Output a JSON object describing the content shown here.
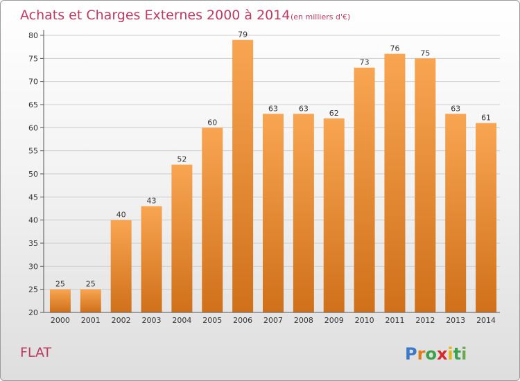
{
  "header": {
    "title": "Achats et Charges Externes 2000 à 2014",
    "unit": "(en milliers d'€)"
  },
  "commune": "FLAT",
  "brand": {
    "letters": [
      "P",
      "r",
      "o",
      "x",
      "i",
      "t",
      "i"
    ],
    "colors": [
      "#3a78c9",
      "#e07b1a",
      "#3aa04a",
      "#d8292c",
      "#e0b81a",
      "#3aa04a",
      "#6aa84f"
    ]
  },
  "colors": {
    "bar_top": "#f8a552",
    "bar_bottom": "#d0701a",
    "title": "#c0395f",
    "grid": "#cccccc"
  },
  "chart_data": {
    "type": "bar",
    "title": "Achats et Charges Externes 2000 à 2014",
    "subtitle": "(en milliers d'€)",
    "categories": [
      "2000",
      "2001",
      "2002",
      "2003",
      "2004",
      "2005",
      "2006",
      "2007",
      "2008",
      "2009",
      "2010",
      "2011",
      "2012",
      "2013",
      "2014"
    ],
    "values": [
      25,
      25,
      40,
      43,
      52,
      60,
      79,
      63,
      63,
      62,
      73,
      76,
      75,
      63,
      61
    ],
    "ylim": [
      20,
      80
    ],
    "yticks": [
      20,
      25,
      30,
      35,
      40,
      45,
      50,
      55,
      60,
      65,
      70,
      75,
      80
    ],
    "grid": true,
    "xlabel": "",
    "ylabel": ""
  }
}
